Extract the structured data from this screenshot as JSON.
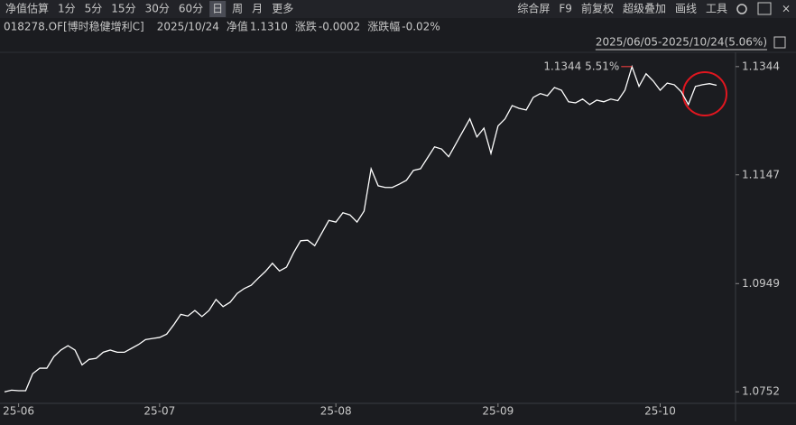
{
  "toolbar": {
    "left": [
      "净值估算",
      "1分",
      "5分",
      "15分",
      "30分",
      "60分",
      "日",
      "周",
      "月",
      "更多"
    ],
    "active": 6,
    "right": [
      "综合屏",
      "F9",
      "前复权",
      "超级叠加",
      "画线",
      "工具"
    ]
  },
  "info": {
    "code": "018278.OF[博时稳健增利C]",
    "date": "2025/10/24",
    "nav_label": "净值",
    "nav": "1.1310",
    "change_label": "涨跌",
    "change": "-0.0002",
    "pct_label": "涨跌幅",
    "pct": "-0.02%"
  },
  "range": {
    "period": "2025/06/05-2025/10/24",
    "change": "5.06%"
  },
  "chart_data": {
    "type": "line",
    "color": "#ffffff",
    "annotation": "1.1344 5.51%",
    "values": [
      1.0752,
      1.0755,
      1.0754,
      1.0754,
      1.0785,
      1.0795,
      1.0795,
      1.0816,
      1.0828,
      1.0836,
      1.0828,
      1.0801,
      1.0811,
      1.0813,
      1.0824,
      1.0828,
      1.0824,
      1.0824,
      1.0831,
      1.0838,
      1.0847,
      1.0849,
      1.0851,
      1.0857,
      1.0874,
      1.0893,
      1.089,
      1.09,
      1.0889,
      1.09,
      1.092,
      1.0907,
      1.0915,
      1.0931,
      1.094,
      1.0946,
      1.0959,
      1.0971,
      1.0986,
      1.0972,
      1.0979,
      1.1005,
      1.1027,
      1.1028,
      1.1018,
      1.1041,
      1.1064,
      1.1061,
      1.1078,
      1.1074,
      1.1061,
      1.1081,
      1.1158,
      1.1127,
      1.1124,
      1.1124,
      1.113,
      1.1137,
      1.1155,
      1.1158,
      1.1178,
      1.1198,
      1.1194,
      1.118,
      1.1203,
      1.1226,
      1.1249,
      1.1216,
      1.1232,
      1.1186,
      1.1236,
      1.1249,
      1.1273,
      1.1268,
      1.1265,
      1.1288,
      1.1295,
      1.1291,
      1.1306,
      1.1301,
      1.128,
      1.1278,
      1.1285,
      1.1275,
      1.1283,
      1.128,
      1.1285,
      1.1282,
      1.1301,
      1.1344,
      1.1308,
      1.1331,
      1.1318,
      1.1301,
      1.1314,
      1.1311,
      1.1298,
      1.1275,
      1.1308,
      1.1311,
      1.1313,
      1.131
    ],
    "xlim": [
      0,
      101
    ],
    "xticks": [
      {
        "value": 2,
        "label": "25-06"
      },
      {
        "value": 22,
        "label": "25-07"
      },
      {
        "value": 47,
        "label": "25-08"
      },
      {
        "value": 70,
        "label": "25-09"
      },
      {
        "value": 93,
        "label": "25-10"
      }
    ],
    "ylim": [
      1.0731,
      1.137
    ],
    "yticks": [
      1.0752,
      1.0949,
      1.1147,
      1.1344
    ]
  }
}
